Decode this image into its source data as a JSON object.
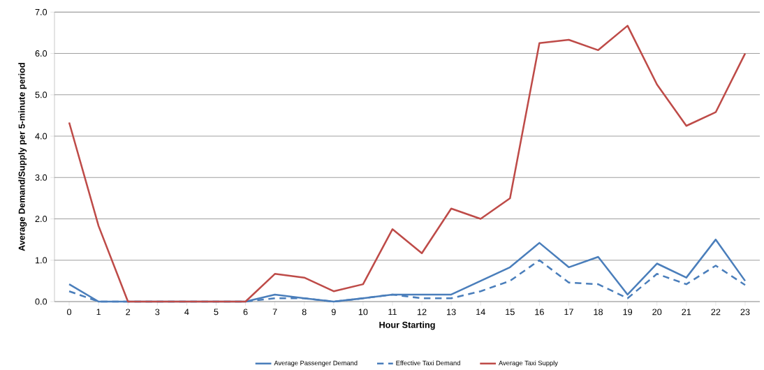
{
  "chart_data": {
    "type": "line",
    "xlabel": "Hour Starting",
    "ylabel": "Average Demand/Supply per 5-minute period",
    "categories": [
      "0",
      "1",
      "2",
      "3",
      "4",
      "5",
      "6",
      "7",
      "8",
      "9",
      "10",
      "11",
      "12",
      "13",
      "14",
      "15",
      "16",
      "17",
      "18",
      "19",
      "20",
      "21",
      "22",
      "23"
    ],
    "series": [
      {
        "name": "Average Passenger Demand",
        "color": "#4a7ebb",
        "line_style": "solid",
        "values": [
          0.42,
          0,
          0,
          0,
          0,
          0,
          0,
          0.17,
          0.08,
          0,
          0.08,
          0.17,
          0.17,
          0.17,
          0.5,
          0.83,
          1.42,
          0.83,
          1.08,
          0.17,
          0.92,
          0.58,
          1.5,
          0.5
        ]
      },
      {
        "name": "Effective Taxi Demand",
        "color": "#4a7ebb",
        "line_style": "dashed",
        "values": [
          0.25,
          0,
          0,
          0,
          0,
          0,
          0,
          0.08,
          0.08,
          0,
          0.08,
          0.17,
          0.08,
          0.08,
          0.25,
          0.5,
          1.0,
          0.46,
          0.42,
          0.08,
          0.67,
          0.42,
          0.87,
          0.4
        ]
      },
      {
        "name": "Average Taxi Supply",
        "color": "#be4b48",
        "line_style": "solid",
        "values": [
          4.33,
          1.83,
          0,
          0,
          0,
          0,
          0,
          0.67,
          0.58,
          0.25,
          0.42,
          1.75,
          1.17,
          2.25,
          2.0,
          2.5,
          6.25,
          6.33,
          6.08,
          6.67,
          5.25,
          4.25,
          4.58,
          6.0
        ]
      }
    ],
    "ylim": [
      0,
      7
    ],
    "yticks": [
      {
        "value": 0,
        "label": "0.0"
      },
      {
        "value": 1,
        "label": "1.0"
      },
      {
        "value": 2,
        "label": "2.0"
      },
      {
        "value": 3,
        "label": "3.0"
      },
      {
        "value": 4,
        "label": "4.0"
      },
      {
        "value": 5,
        "label": "5.0"
      },
      {
        "value": 6,
        "label": "6.0"
      },
      {
        "value": 7,
        "label": "7.0"
      }
    ],
    "grid": "y",
    "legend": "bottom",
    "marker": "none"
  }
}
